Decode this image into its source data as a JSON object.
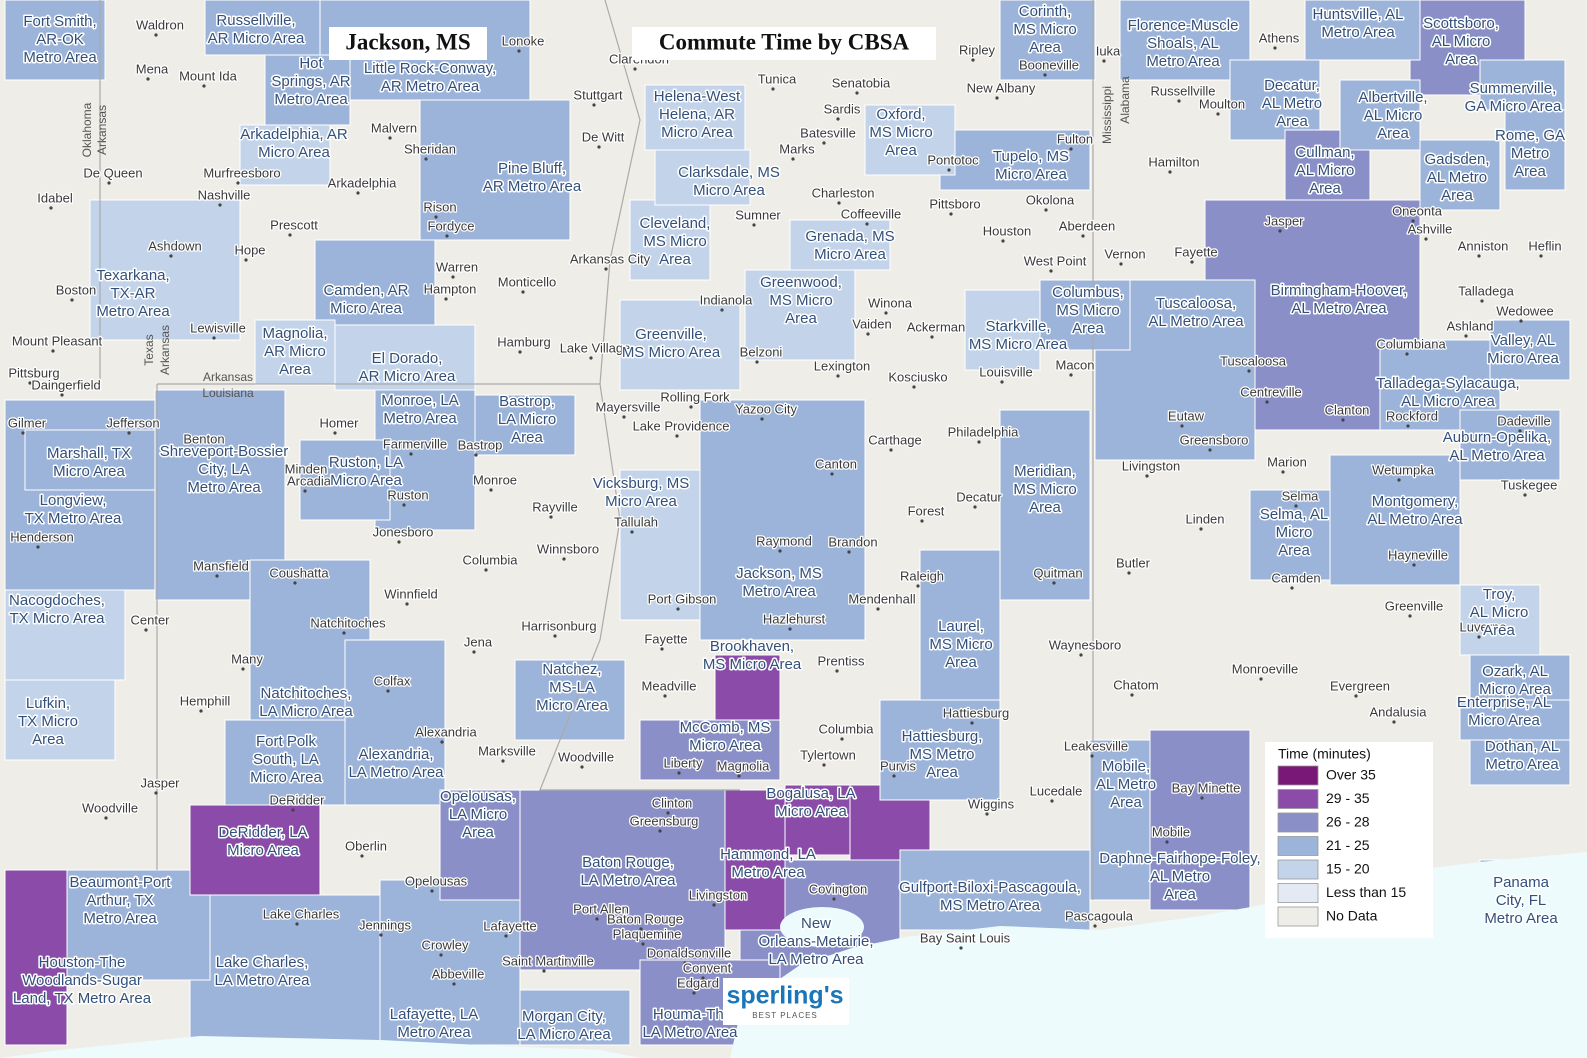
{
  "title": "Commute Time by CBSA",
  "place": "Jackson, MS",
  "legend": {
    "title": "Time (minutes)",
    "items": [
      {
        "label": "Over 35",
        "color": "#7a1877"
      },
      {
        "label": "29 - 35",
        "color": "#8a4ca8"
      },
      {
        "label": "26 - 28",
        "color": "#8b8fc7"
      },
      {
        "label": "21 - 25",
        "color": "#9cb3da"
      },
      {
        "label": "15 - 20",
        "color": "#c3d4ea"
      },
      {
        "label": "Less than 15",
        "color": "#e3eaf3"
      },
      {
        "label": "No Data",
        "color": "#efede7"
      }
    ]
  },
  "logo": {
    "name": "sperling's",
    "tagline": "BEST PLACES"
  },
  "states": [
    "Oklahoma",
    "Arkansas",
    "Texas",
    "Arkansas",
    "Louisiana",
    "Arkansas",
    "Mississippi",
    "Alabama"
  ],
  "cbsas": [
    {
      "name": [
        "Fort Smith,",
        "AR-OK",
        "Metro Area"
      ],
      "color": "#9cb3da"
    },
    {
      "name": [
        "Russellville,",
        "AR Micro Area"
      ],
      "color": "#9cb3da"
    },
    {
      "name": [
        "Hot",
        "Springs, AR",
        "Metro Area"
      ],
      "color": "#9cb3da"
    },
    {
      "name": [
        "Little Rock-Conway,",
        "AR Metro Area"
      ],
      "color": "#9cb3da"
    },
    {
      "name": [
        "Arkadelphia, AR",
        "Micro Area"
      ],
      "color": "#c3d4ea"
    },
    {
      "name": [
        "Pine Bluff,",
        "AR Metro Area"
      ],
      "color": "#9cb3da"
    },
    {
      "name": [
        "Helena-West",
        "Helena, AR",
        "Micro Area"
      ],
      "color": "#c3d4ea"
    },
    {
      "name": [
        "Clarksdale, MS",
        "Micro Area"
      ],
      "color": "#c3d4ea"
    },
    {
      "name": [
        "Oxford,",
        "MS Micro",
        "Area"
      ],
      "color": "#c3d4ea"
    },
    {
      "name": [
        "Corinth,",
        "MS Micro",
        "Area"
      ],
      "color": "#9cb3da"
    },
    {
      "name": [
        "Tupelo, MS",
        "Micro Area"
      ],
      "color": "#9cb3da"
    },
    {
      "name": [
        "Florence-Muscle",
        "Shoals, AL",
        "Metro Area"
      ],
      "color": "#9cb3da"
    },
    {
      "name": [
        "Huntsville, AL",
        "Metro Area"
      ],
      "color": "#9cb3da"
    },
    {
      "name": [
        "Scottsboro,",
        "AL Micro",
        "Area"
      ],
      "color": "#8b8fc7"
    },
    {
      "name": [
        "Decatur,",
        "AL Metro",
        "Area"
      ],
      "color": "#9cb3da"
    },
    {
      "name": [
        "Albertville,",
        "AL Micro",
        "Area"
      ],
      "color": "#9cb3da"
    },
    {
      "name": [
        "Summerville,",
        "GA Micro Area"
      ],
      "color": "#9cb3da"
    },
    {
      "name": [
        "Rome, GA",
        "Metro",
        "Area"
      ],
      "color": "#9cb3da"
    },
    {
      "name": [
        "Cullman,",
        "AL Micro",
        "Area"
      ],
      "color": "#8b8fc7"
    },
    {
      "name": [
        "Gadsden,",
        "AL Metro",
        "Area"
      ],
      "color": "#9cb3da"
    },
    {
      "name": [
        "Birmingham-Hoover,",
        "AL Metro Area"
      ],
      "color": "#8b8fc7"
    },
    {
      "name": [
        "Texarkana,",
        "TX-AR",
        "Metro Area"
      ],
      "color": "#c3d4ea"
    },
    {
      "name": [
        "Camden, AR",
        "Micro Area"
      ],
      "color": "#9cb3da"
    },
    {
      "name": [
        "Magnolia,",
        "AR Micro",
        "Area"
      ],
      "color": "#c3d4ea"
    },
    {
      "name": [
        "El Dorado,",
        "AR Micro Area"
      ],
      "color": "#c3d4ea"
    },
    {
      "name": [
        "Cleveland,",
        "MS Micro",
        "Area"
      ],
      "color": "#c3d4ea"
    },
    {
      "name": [
        "Grenada, MS",
        "Micro Area"
      ],
      "color": "#c3d4ea"
    },
    {
      "name": [
        "Greenwood,",
        "MS Micro",
        "Area"
      ],
      "color": "#c3d4ea"
    },
    {
      "name": [
        "Greenville,",
        "MS Micro Area"
      ],
      "color": "#c3d4ea"
    },
    {
      "name": [
        "Columbus,",
        "MS Micro",
        "Area"
      ],
      "color": "#9cb3da"
    },
    {
      "name": [
        "Starkville,",
        "MS Micro Area"
      ],
      "color": "#c3d4ea"
    },
    {
      "name": [
        "Tuscaloosa,",
        "AL Metro Area"
      ],
      "color": "#9cb3da"
    },
    {
      "name": [
        "Marshall, TX",
        "Micro Area"
      ],
      "color": "#9cb3da"
    },
    {
      "name": [
        "Longview,",
        "TX Metro Area"
      ],
      "color": "#9cb3da"
    },
    {
      "name": [
        "Shreveport-Bossier",
        "City, LA",
        "Metro Area"
      ],
      "color": "#9cb3da"
    },
    {
      "name": [
        "Monroe, LA",
        "Metro Area"
      ],
      "color": "#9cb3da"
    },
    {
      "name": [
        "Ruston, LA",
        "Micro Area"
      ],
      "color": "#9cb3da"
    },
    {
      "name": [
        "Bastrop,",
        "LA Micro",
        "Area"
      ],
      "color": "#9cb3da"
    },
    {
      "name": [
        "Vicksburg, MS",
        "Micro Area"
      ],
      "color": "#c3d4ea"
    },
    {
      "name": [
        "Jackson, MS",
        "Metro Area"
      ],
      "color": "#9cb3da"
    },
    {
      "name": [
        "Meridian,",
        "MS Micro",
        "Area"
      ],
      "color": "#9cb3da"
    },
    {
      "name": [
        "Laurel,",
        "MS Micro",
        "Area"
      ],
      "color": "#9cb3da"
    },
    {
      "name": [
        "Nacogdoches,",
        "TX Micro Area"
      ],
      "color": "#c3d4ea"
    },
    {
      "name": [
        "Lufkin,",
        "TX Micro",
        "Area"
      ],
      "color": "#c3d4ea"
    },
    {
      "name": [
        "Natchitoches,",
        "LA Micro Area"
      ],
      "color": "#9cb3da"
    },
    {
      "name": [
        "Natchez,",
        "MS-LA",
        "Micro Area"
      ],
      "color": "#9cb3da"
    },
    {
      "name": [
        "Brookhaven,",
        "MS Micro Area"
      ],
      "color": "#8a4ca8"
    },
    {
      "name": [
        "McComb, MS",
        "Micro Area"
      ],
      "color": "#8b8fc7"
    },
    {
      "name": [
        "Hattiesburg,",
        "MS Metro",
        "Area"
      ],
      "color": "#9cb3da"
    },
    {
      "name": [
        "Fort Polk",
        "South, LA",
        "Micro Area"
      ],
      "color": "#9cb3da"
    },
    {
      "name": [
        "Alexandria,",
        "LA Metro Area"
      ],
      "color": "#9cb3da"
    },
    {
      "name": [
        "DeRidder, LA",
        "Micro Area"
      ],
      "color": "#8a4ca8"
    },
    {
      "name": [
        "Opelousas,",
        "LA Micro",
        "Area"
      ],
      "color": "#8b8fc7"
    },
    {
      "name": [
        "Baton Rouge,",
        "LA Metro Area"
      ],
      "color": "#8b8fc7"
    },
    {
      "name": [
        "Hammond, LA",
        "Metro Area"
      ],
      "color": "#8a4ca8"
    },
    {
      "name": [
        "Bogalusa, LA",
        "Micro Area"
      ],
      "color": "#8a4ca8"
    },
    {
      "name": [
        "New",
        "Orleans-Metairie,",
        "LA Metro Area"
      ],
      "color": "#8b8fc7"
    },
    {
      "name": [
        "Gulfport-Biloxi-Pascagoula,",
        "MS Metro Area"
      ],
      "color": "#9cb3da"
    },
    {
      "name": [
        "Mobile,",
        "AL Metro",
        "Area"
      ],
      "color": "#9cb3da"
    },
    {
      "name": [
        "Daphne-Fairhope-Foley,",
        "AL Metro",
        "Area"
      ],
      "color": "#8b8fc7"
    },
    {
      "name": [
        "Beaumont-Port",
        "Arthur, TX",
        "Metro Area"
      ],
      "color": "#9cb3da"
    },
    {
      "name": [
        "Houston-The",
        "Woodlands-Sugar",
        "Land, TX Metro Area"
      ],
      "color": "#8a4ca8"
    },
    {
      "name": [
        "Lake Charles,",
        "LA Metro Area"
      ],
      "color": "#9cb3da"
    },
    {
      "name": [
        "Lafayette, LA",
        "Metro Area"
      ],
      "color": "#9cb3da"
    },
    {
      "name": [
        "Morgan City,",
        "LA Micro Area"
      ],
      "color": "#9cb3da"
    },
    {
      "name": [
        "Houma-Thi",
        "LA Metro Area"
      ],
      "color": "#8b8fc7"
    },
    {
      "name": [
        "Selma, AL",
        "Micro",
        "Area"
      ],
      "color": "#9cb3da"
    },
    {
      "name": [
        "Montgomery,",
        "AL Metro Area"
      ],
      "color": "#9cb3da"
    },
    {
      "name": [
        "Talladega-Sylacauga,",
        "AL Micro Area"
      ],
      "color": "#9cb3da"
    },
    {
      "name": [
        "Auburn-Opelika,",
        "AL Metro Area"
      ],
      "color": "#9cb3da"
    },
    {
      "name": [
        "Valley, AL",
        "Micro Area"
      ],
      "color": "#9cb3da"
    },
    {
      "name": [
        "Troy,",
        "AL Micro",
        "Area"
      ],
      "color": "#c3d4ea"
    },
    {
      "name": [
        "Ozark, AL",
        "Micro Area"
      ],
      "color": "#9cb3da"
    },
    {
      "name": [
        "Enterprise, AL",
        "Micro Area"
      ],
      "color": "#9cb3da"
    },
    {
      "name": [
        "Dothan, AL",
        "Metro Area"
      ],
      "color": "#9cb3da"
    },
    {
      "name": [
        "Panama",
        "City, FL",
        "Metro Area"
      ],
      "color": "#9cb3da"
    }
  ],
  "cities": [
    "Waldron",
    "Mena",
    "Mount Ida",
    "De Queen",
    "Idabel",
    "Murfreesboro",
    "Nashville",
    "Ashdown",
    "Hope",
    "Prescott",
    "Arkadelphia",
    "Malvern",
    "Sheridan",
    "Rison",
    "Fordyce",
    "Warren",
    "Hampton",
    "Monticello",
    "Lonoke",
    "Stuttgart",
    "De Witt",
    "Clarendon",
    "Arkansas City",
    "Lake Village",
    "Hamburg",
    "Boston",
    "Lewisville",
    "Tunica",
    "Senatobia",
    "Sardis",
    "Batesville",
    "Marks",
    "Charleston",
    "Coffeeville",
    "Sumner",
    "Indianola",
    "Belzoni",
    "Winona",
    "Vaiden",
    "Lexington",
    "Kosciusko",
    "Yazoo City",
    "Canton",
    "Carthage",
    "Philadelphia",
    "Pontotoc",
    "Fulton",
    "Pittsboro",
    "Houston",
    "Okolona",
    "Aberdeen",
    "West Point",
    "Ackerman",
    "Louisville",
    "Macon",
    "Tallulah",
    "Rayville",
    "Raymond",
    "Brandon",
    "Mendenhall",
    "Hazlehurst",
    "Forest",
    "Decatur",
    "Raleigh",
    "Jonesboro",
    "Winnsboro",
    "Harrisonburg",
    "Jena",
    "Fayette",
    "Port Gibson",
    "Meadville",
    "Prentiss",
    "Tylertown",
    "Liberty",
    "Magnolia",
    "Woodville",
    "Marksville",
    "Colfax",
    "Winnfield",
    "Many",
    "Hemphill",
    "Center",
    "Henderson",
    "Mansfield",
    "Coushatta",
    "Homer",
    "Minden",
    "Jefferson",
    "Gilmer",
    "Pittsburg",
    "Daingerfield",
    "Mount Pleasant",
    "Jasper",
    "Woodville",
    "DeRidder",
    "Oberlin",
    "Jennings",
    "Crowley",
    "Abbeville",
    "Lafayette",
    "Saint Martinville",
    "Clinton",
    "Greensburg",
    "Livingston",
    "Covington",
    "Donaldsonville",
    "Bay Saint Louis",
    "Pascagoula",
    "Wiggins",
    "Purvis",
    "Lucedale",
    "Leakesville",
    "Waynesboro",
    "Chatom",
    "Butler",
    "Quitman",
    "Livingston",
    "Eutaw",
    "Greensboro",
    "Marion",
    "Linden",
    "Camden",
    "Monroeville",
    "Evergreen",
    "Andalusia",
    "Greenville",
    "Luverne",
    "Hayneville",
    "Wetumpka",
    "Tuskegee",
    "Clanton",
    "Rockford",
    "Centreville",
    "Columbiana",
    "Ashland",
    "Wedowee",
    "Talladega",
    "Anniston",
    "Heflin",
    "Oneonta",
    "Ashville",
    "Jasper",
    "Fayette",
    "Vernon",
    "Hamilton",
    "Russellville",
    "Moulton",
    "Athens",
    "Iuka",
    "Booneville",
    "New Albany",
    "Ripley",
    "Tuscaloosa",
    "Lake Providence",
    "Rolling Fork",
    "Mayersville",
    "Farmerville",
    "Bastrop",
    "Monroe",
    "Ruston",
    "Benton",
    "Arcadia",
    "Natchitoches",
    "Alexandria",
    "Opelousas",
    "Lake Charles",
    "Port Allen",
    "Plaquemine",
    "Baton Rouge",
    "Hattiesburg",
    "Columbia",
    "Columbia",
    "Bay Minette",
    "Mobile",
    "Selma",
    "Dadeville",
    "Edgard",
    "Convent"
  ]
}
